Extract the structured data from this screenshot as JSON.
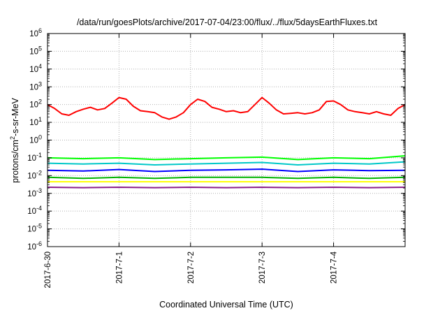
{
  "chart_data": {
    "type": "line",
    "title": "/data/run/goesPlots/archive/2017-07-04/23:00/flux/../flux/5daysEarthFluxes.txt",
    "xlabel": "Coordinated Universal Time (UTC)",
    "ylabel": "protons/cm²-s-sr-MeV",
    "yscale": "log",
    "ylim": [
      1e-06,
      1000000.0
    ],
    "xlim": [
      0,
      5
    ],
    "x_unit": "days since 2017-6-30 00:00 UTC",
    "xticks": [
      {
        "x": 0,
        "label": "2017-6-30"
      },
      {
        "x": 1,
        "label": "2017-7-1"
      },
      {
        "x": 2,
        "label": "2017-7-2"
      },
      {
        "x": 3,
        "label": "2017-7-3"
      },
      {
        "x": 4,
        "label": "2017-7-4"
      }
    ],
    "yticks": [
      {
        "exp": -6,
        "label": "10",
        "sup": "-6"
      },
      {
        "exp": -5,
        "label": "10",
        "sup": "-5"
      },
      {
        "exp": -4,
        "label": "10",
        "sup": "-4"
      },
      {
        "exp": -3,
        "label": "10",
        "sup": "-3"
      },
      {
        "exp": -2,
        "label": "10",
        "sup": "-2"
      },
      {
        "exp": -1,
        "label": "10",
        "sup": "-1"
      },
      {
        "exp": 0,
        "label": "10",
        "sup": "0"
      },
      {
        "exp": 1,
        "label": "10",
        "sup": "1"
      },
      {
        "exp": 2,
        "label": "10",
        "sup": "2"
      },
      {
        "exp": 3,
        "label": "10",
        "sup": "3"
      },
      {
        "exp": 4,
        "label": "10",
        "sup": "4"
      },
      {
        "exp": 5,
        "label": "10",
        "sup": "5"
      },
      {
        "exp": 6,
        "label": "10",
        "sup": "6"
      }
    ],
    "grid": true,
    "series": [
      {
        "color": "#ff0000",
        "x": [
          0,
          0.1,
          0.2,
          0.3,
          0.4,
          0.5,
          0.6,
          0.7,
          0.8,
          0.9,
          1.0,
          1.1,
          1.2,
          1.3,
          1.4,
          1.5,
          1.6,
          1.7,
          1.8,
          1.9,
          2.0,
          2.1,
          2.2,
          2.3,
          2.4,
          2.5,
          2.6,
          2.7,
          2.8,
          2.9,
          3.0,
          3.1,
          3.2,
          3.3,
          3.4,
          3.5,
          3.6,
          3.7,
          3.8,
          3.9,
          4.0,
          4.1,
          4.2,
          4.3,
          4.4,
          4.5,
          4.6,
          4.7,
          4.8,
          4.9,
          5.0
        ],
        "y": [
          100,
          60,
          30,
          25,
          40,
          55,
          70,
          50,
          60,
          120,
          250,
          200,
          80,
          45,
          40,
          35,
          20,
          15,
          20,
          35,
          100,
          200,
          150,
          70,
          55,
          40,
          45,
          35,
          40,
          100,
          250,
          120,
          50,
          30,
          32,
          35,
          30,
          35,
          50,
          150,
          160,
          100,
          50,
          40,
          35,
          30,
          40,
          30,
          25,
          60,
          100
        ]
      },
      {
        "color": "#00ff00",
        "x": [
          0,
          0.5,
          1.0,
          1.5,
          2.0,
          2.5,
          3.0,
          3.5,
          4.0,
          4.5,
          5.0
        ],
        "y": [
          0.1,
          0.09,
          0.1,
          0.08,
          0.09,
          0.1,
          0.11,
          0.08,
          0.1,
          0.09,
          0.13
        ]
      },
      {
        "color": "#00c8c8",
        "x": [
          0,
          0.5,
          1.0,
          1.5,
          2.0,
          2.5,
          3.0,
          3.5,
          4.0,
          4.5,
          5.0
        ],
        "y": [
          0.05,
          0.045,
          0.05,
          0.04,
          0.045,
          0.05,
          0.055,
          0.04,
          0.05,
          0.045,
          0.06
        ]
      },
      {
        "color": "#0000ff",
        "x": [
          0,
          0.5,
          1.0,
          1.5,
          2.0,
          2.5,
          3.0,
          3.5,
          4.0,
          4.5,
          5.0
        ],
        "y": [
          0.02,
          0.018,
          0.022,
          0.017,
          0.02,
          0.021,
          0.023,
          0.017,
          0.021,
          0.019,
          0.02
        ]
      },
      {
        "color": "#00b400",
        "x": [
          0,
          0.5,
          1.0,
          1.5,
          2.0,
          2.5,
          3.0,
          3.5,
          4.0,
          4.5,
          5.0
        ],
        "y": [
          0.008,
          0.007,
          0.008,
          0.007,
          0.008,
          0.008,
          0.008,
          0.007,
          0.008,
          0.007,
          0.008
        ]
      },
      {
        "color": "#ffff00",
        "x": [
          0,
          0.5,
          1.0,
          1.5,
          2.0,
          2.5,
          3.0,
          3.5,
          4.0,
          4.5,
          5.0
        ],
        "y": [
          0.0045,
          0.0045,
          0.0045,
          0.0045,
          0.0045,
          0.0045,
          0.0045,
          0.0045,
          0.0045,
          0.0045,
          0.0045
        ]
      },
      {
        "color": "#8b1e8b",
        "x": [
          0,
          0.5,
          1.0,
          1.5,
          2.0,
          2.5,
          3.0,
          3.5,
          4.0,
          4.5,
          5.0
        ],
        "y": [
          0.0022,
          0.0021,
          0.0022,
          0.0021,
          0.0022,
          0.0021,
          0.0022,
          0.0021,
          0.0022,
          0.0021,
          0.0022
        ]
      }
    ]
  }
}
